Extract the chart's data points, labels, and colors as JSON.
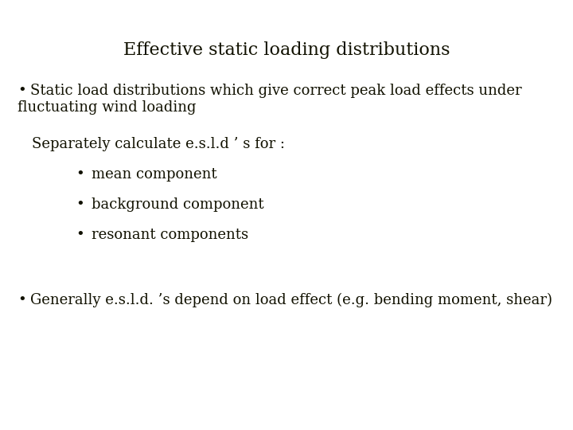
{
  "title": "Effective static loading distributions",
  "title_fontsize": 16,
  "background_color": "#ffffff",
  "font_family": "serif",
  "text_color": "#111100",
  "bullet1_line1": "Static load distributions which give correct peak load effects under",
  "bullet1_line2": "fluctuating wind loading",
  "subheading": "Separately calculate e.s.l.d ’ s for :",
  "subbullets": [
    "mean component",
    "background component",
    "resonant components"
  ],
  "bullet2": "Generally e.s.l.d. ’s depend on load effect (e.g. bending moment, shear)",
  "main_fontsize": 13,
  "sub_fontsize": 13
}
